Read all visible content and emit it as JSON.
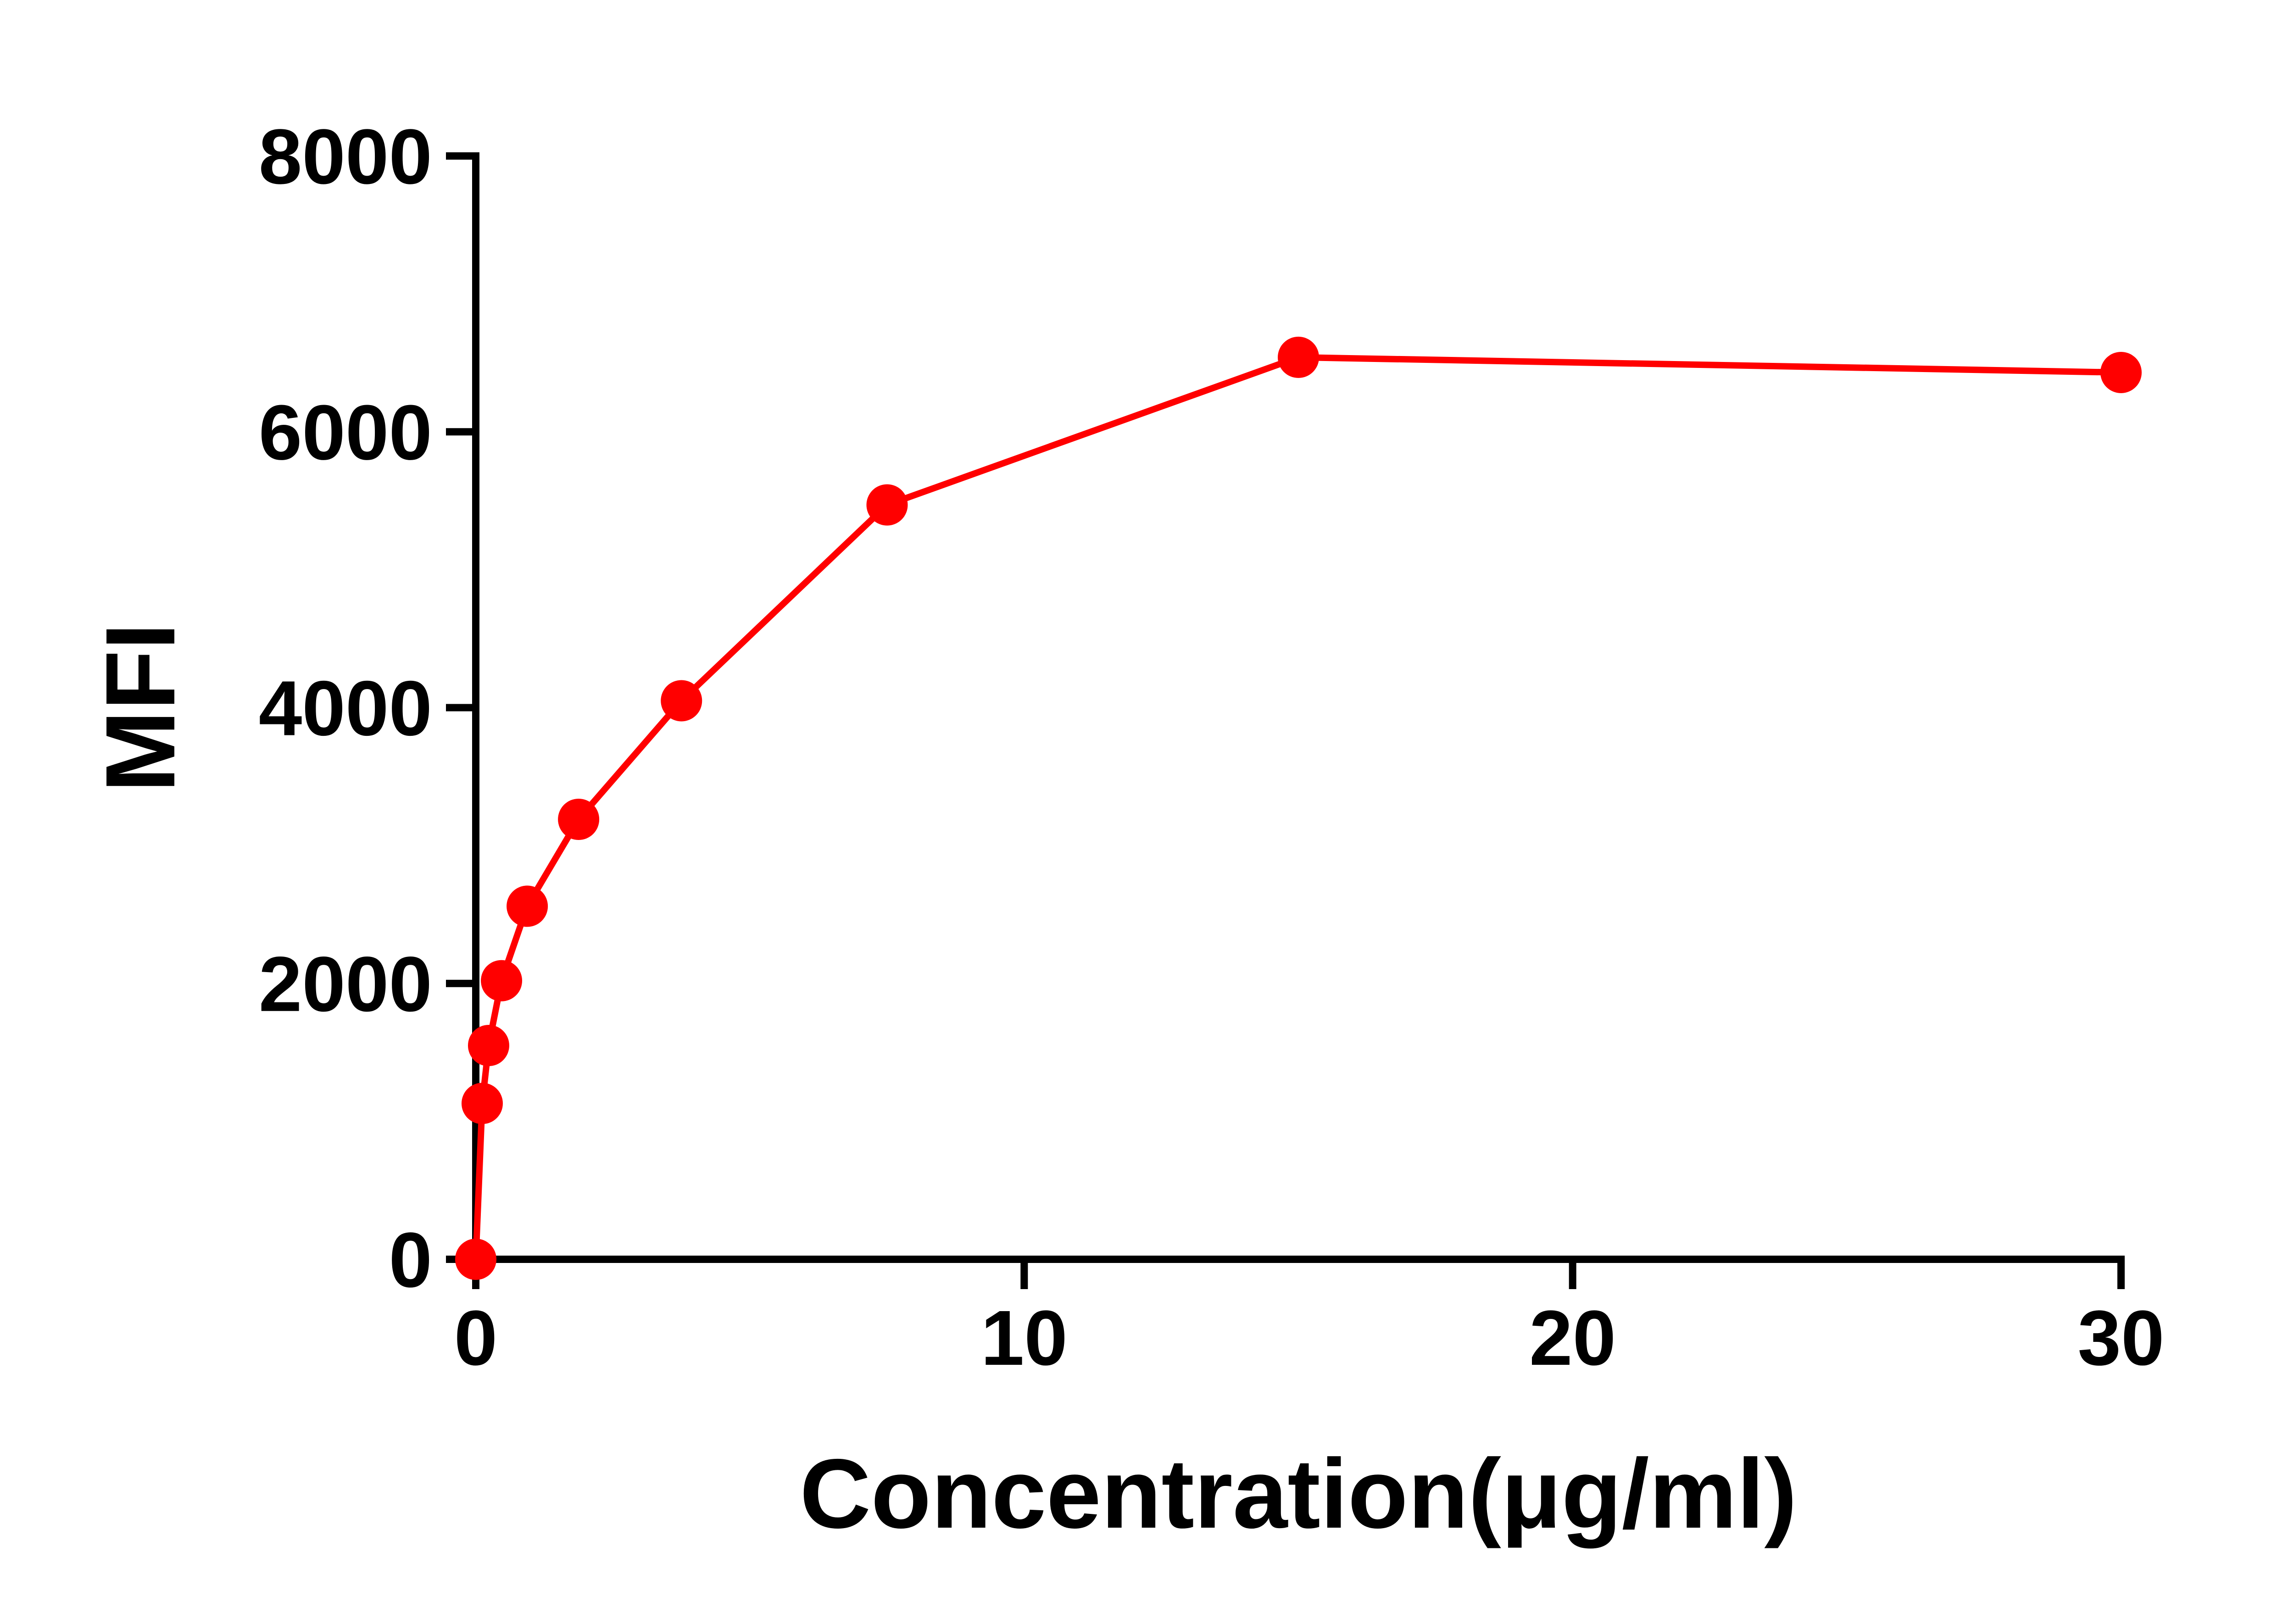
{
  "chart_data": {
    "type": "line",
    "title": "",
    "xlabel": "Concentration(μg/ml)",
    "ylabel": "MFI",
    "xlim": [
      0,
      30
    ],
    "ylim": [
      0,
      8000
    ],
    "xticks": [
      "0",
      "10",
      "20",
      "30"
    ],
    "yticks": [
      "0",
      "2000",
      "4000",
      "6000",
      "8000"
    ],
    "grid": false,
    "legend": "none",
    "series": [
      {
        "color": "#ff0000",
        "x": [
          0,
          0.117,
          0.234,
          0.469,
          0.938,
          1.875,
          3.75,
          7.5,
          15,
          30
        ],
        "y": [
          0,
          1130,
          1550,
          2020,
          2560,
          3190,
          4050,
          5470,
          6540,
          6430
        ]
      }
    ]
  }
}
